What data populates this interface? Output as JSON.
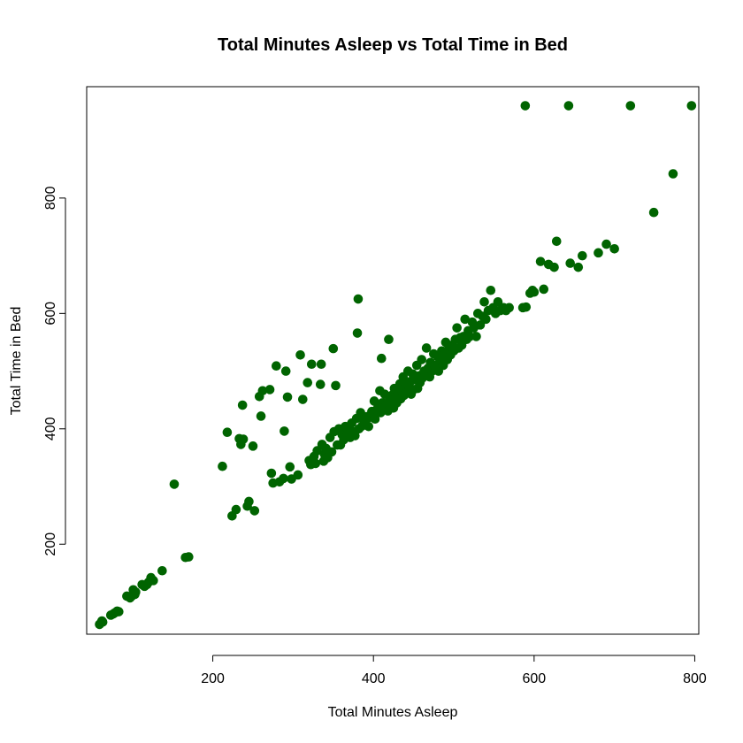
{
  "chart_data": {
    "type": "scatter",
    "title": "Total Minutes Asleep vs Total Time in Bed",
    "xlabel": "Total Minutes Asleep",
    "ylabel": "Total Time in Bed",
    "xlim": [
      43,
      805
    ],
    "ylim": [
      44,
      993
    ],
    "xticks": [
      200,
      400,
      600,
      800
    ],
    "yticks": [
      200,
      400,
      600,
      800
    ],
    "point_color": "#006400",
    "grid": false,
    "series": [
      {
        "points": [
          [
            59,
            61
          ],
          [
            61,
            64
          ],
          [
            62,
            67
          ],
          [
            63,
            65
          ],
          [
            73,
            77
          ],
          [
            76,
            79
          ],
          [
            78,
            81
          ],
          [
            81,
            84
          ],
          [
            83,
            83
          ],
          [
            93,
            110
          ],
          [
            97,
            107
          ],
          [
            99,
            110
          ],
          [
            101,
            121
          ],
          [
            103,
            113
          ],
          [
            104,
            117
          ],
          [
            112,
            130
          ],
          [
            115,
            127
          ],
          [
            118,
            130
          ],
          [
            120,
            134
          ],
          [
            123,
            142
          ],
          [
            126,
            137
          ],
          [
            137,
            154
          ],
          [
            152,
            304
          ],
          [
            166,
            177
          ],
          [
            170,
            178
          ],
          [
            212,
            335
          ],
          [
            218,
            394
          ],
          [
            224,
            249
          ],
          [
            229,
            260
          ],
          [
            233,
            383
          ],
          [
            235,
            373
          ],
          [
            237,
            441
          ],
          [
            238,
            382
          ],
          [
            243,
            266
          ],
          [
            245,
            274
          ],
          [
            250,
            370
          ],
          [
            252,
            258
          ],
          [
            258,
            456
          ],
          [
            260,
            422
          ],
          [
            262,
            466
          ],
          [
            271,
            468
          ],
          [
            273,
            323
          ],
          [
            275,
            306
          ],
          [
            279,
            509
          ],
          [
            283,
            308
          ],
          [
            288,
            314
          ],
          [
            289,
            396
          ],
          [
            291,
            500
          ],
          [
            293,
            455
          ],
          [
            296,
            334
          ],
          [
            298,
            313
          ],
          [
            306,
            320
          ],
          [
            309,
            528
          ],
          [
            312,
            451
          ],
          [
            318,
            480
          ],
          [
            320,
            345
          ],
          [
            322,
            338
          ],
          [
            323,
            512
          ],
          [
            326,
            352
          ],
          [
            328,
            340
          ],
          [
            330,
            362
          ],
          [
            334,
            477
          ],
          [
            335,
            512
          ],
          [
            336,
            373
          ],
          [
            338,
            344
          ],
          [
            339,
            356
          ],
          [
            341,
            366
          ],
          [
            343,
            350
          ],
          [
            346,
            385
          ],
          [
            348,
            360
          ],
          [
            350,
            539
          ],
          [
            351,
            395
          ],
          [
            353,
            475
          ],
          [
            355,
            372
          ],
          [
            357,
            400
          ],
          [
            359,
            372
          ],
          [
            361,
            390
          ],
          [
            363,
            381
          ],
          [
            365,
            404
          ],
          [
            367,
            388
          ],
          [
            369,
            397
          ],
          [
            371,
            385
          ],
          [
            373,
            410
          ],
          [
            375,
            395
          ],
          [
            377,
            388
          ],
          [
            379,
            418
          ],
          [
            380,
            566
          ],
          [
            381,
            625
          ],
          [
            382,
            400
          ],
          [
            384,
            428
          ],
          [
            386,
            405
          ],
          [
            388,
            416
          ],
          [
            390,
            412
          ],
          [
            392,
            421
          ],
          [
            394,
            404
          ],
          [
            396,
            420
          ],
          [
            398,
            430
          ],
          [
            400,
            425
          ],
          [
            401,
            448
          ],
          [
            402,
            417
          ],
          [
            404,
            433
          ],
          [
            406,
            440
          ],
          [
            408,
            466
          ],
          [
            409,
            428
          ],
          [
            410,
            522
          ],
          [
            411,
            445
          ],
          [
            412,
            437
          ],
          [
            414,
            460
          ],
          [
            416,
            442
          ],
          [
            418,
            431
          ],
          [
            419,
            555
          ],
          [
            420,
            450
          ],
          [
            422,
            442
          ],
          [
            423,
            458
          ],
          [
            425,
            436
          ],
          [
            426,
            470
          ],
          [
            428,
            455
          ],
          [
            429,
            445
          ],
          [
            431,
            462
          ],
          [
            433,
            478
          ],
          [
            434,
            452
          ],
          [
            435,
            468
          ],
          [
            437,
            490
          ],
          [
            438,
            458
          ],
          [
            440,
            480
          ],
          [
            441,
            462
          ],
          [
            443,
            500
          ],
          [
            444,
            475
          ],
          [
            446,
            482
          ],
          [
            447,
            460
          ],
          [
            449,
            495
          ],
          [
            450,
            468
          ],
          [
            452,
            485
          ],
          [
            454,
            510
          ],
          [
            455,
            470
          ],
          [
            457,
            492
          ],
          [
            458,
            480
          ],
          [
            460,
            520
          ],
          [
            461,
            488
          ],
          [
            463,
            500
          ],
          [
            465,
            495
          ],
          [
            466,
            540
          ],
          [
            468,
            505
          ],
          [
            470,
            490
          ],
          [
            471,
            515
          ],
          [
            473,
            500
          ],
          [
            475,
            530
          ],
          [
            476,
            510
          ],
          [
            478,
            505
          ],
          [
            480,
            525
          ],
          [
            481,
            500
          ],
          [
            483,
            518
          ],
          [
            485,
            535
          ],
          [
            487,
            510
          ],
          [
            489,
            530
          ],
          [
            490,
            550
          ],
          [
            492,
            520
          ],
          [
            494,
            540
          ],
          [
            496,
            528
          ],
          [
            498,
            545
          ],
          [
            500,
            535
          ],
          [
            502,
            555
          ],
          [
            504,
            575
          ],
          [
            506,
            540
          ],
          [
            508,
            558
          ],
          [
            510,
            545
          ],
          [
            512,
            560
          ],
          [
            514,
            590
          ],
          [
            516,
            555
          ],
          [
            518,
            570
          ],
          [
            520,
            560
          ],
          [
            523,
            585
          ],
          [
            525,
            575
          ],
          [
            528,
            560
          ],
          [
            530,
            600
          ],
          [
            533,
            580
          ],
          [
            536,
            595
          ],
          [
            538,
            620
          ],
          [
            540,
            590
          ],
          [
            543,
            605
          ],
          [
            546,
            640
          ],
          [
            549,
            610
          ],
          [
            552,
            600
          ],
          [
            555,
            620
          ],
          [
            558,
            605
          ],
          [
            562,
            610
          ],
          [
            565,
            605
          ],
          [
            569,
            610
          ],
          [
            586,
            610
          ],
          [
            589,
            960
          ],
          [
            590,
            611
          ],
          [
            595,
            635
          ],
          [
            598,
            640
          ],
          [
            600,
            637
          ],
          [
            608,
            690
          ],
          [
            612,
            642
          ],
          [
            618,
            685
          ],
          [
            625,
            680
          ],
          [
            628,
            725
          ],
          [
            643,
            960
          ],
          [
            645,
            687
          ],
          [
            655,
            680
          ],
          [
            660,
            700
          ],
          [
            680,
            705
          ],
          [
            690,
            720
          ],
          [
            700,
            712
          ],
          [
            720,
            960
          ],
          [
            749,
            775
          ],
          [
            773,
            842
          ],
          [
            796,
            960
          ]
        ]
      }
    ]
  }
}
